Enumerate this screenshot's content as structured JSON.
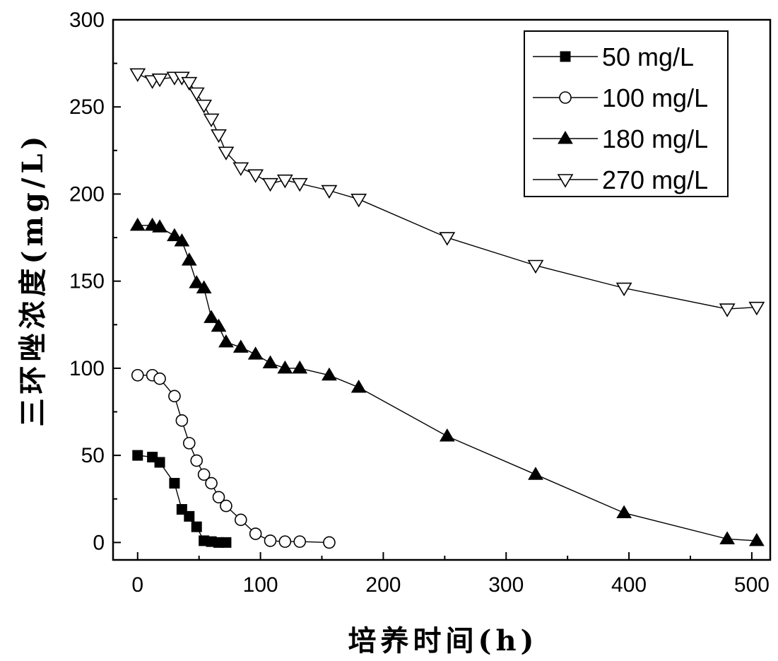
{
  "chart_data": {
    "type": "line",
    "xlabel": "培养时间(h)",
    "ylabel": "三环唑浓度(mg/L)",
    "xlim": [
      -20,
      515
    ],
    "ylim": [
      -10,
      300
    ],
    "xticks": [
      0,
      100,
      200,
      300,
      400,
      500
    ],
    "yticks": [
      0,
      50,
      100,
      150,
      200,
      250,
      300
    ],
    "grid": false,
    "legend_position": "top-right",
    "series": [
      {
        "name": "50 mg/L",
        "marker": "square-filled",
        "x": [
          0,
          12,
          18,
          30,
          36,
          42,
          48,
          54,
          60,
          66,
          72
        ],
        "y": [
          50,
          49,
          46,
          34,
          19,
          15,
          9,
          1,
          0.5,
          0,
          0
        ]
      },
      {
        "name": "100 mg/L",
        "marker": "circle-open",
        "x": [
          0,
          12,
          18,
          30,
          36,
          42,
          48,
          54,
          60,
          66,
          72,
          84,
          96,
          108,
          120,
          132,
          156
        ],
        "y": [
          96,
          96,
          94,
          84,
          70,
          57,
          47,
          39,
          34,
          26,
          21,
          13,
          5,
          1,
          0.5,
          0.5,
          0
        ]
      },
      {
        "name": "180 mg/L",
        "marker": "triangle-up-filled",
        "x": [
          0,
          12,
          18,
          30,
          36,
          42,
          48,
          54,
          60,
          66,
          72,
          84,
          96,
          108,
          120,
          132,
          156,
          180,
          252,
          324,
          396,
          480,
          504
        ],
        "y": [
          182,
          182,
          181,
          176,
          173,
          162,
          149,
          146,
          129,
          124,
          115,
          112,
          108,
          103,
          100,
          100,
          96,
          89,
          61,
          39,
          17,
          2,
          1
        ]
      },
      {
        "name": "270 mg/L",
        "marker": "triangle-down-open",
        "x": [
          0,
          12,
          18,
          30,
          36,
          42,
          48,
          54,
          60,
          66,
          72,
          84,
          96,
          108,
          120,
          132,
          156,
          180,
          252,
          324,
          396,
          480,
          504
        ],
        "y": [
          269,
          265,
          266,
          267,
          267,
          264,
          258,
          251,
          243,
          234,
          224,
          215,
          211,
          206,
          208,
          206,
          202,
          197,
          175,
          159,
          146,
          134,
          135
        ]
      }
    ]
  }
}
